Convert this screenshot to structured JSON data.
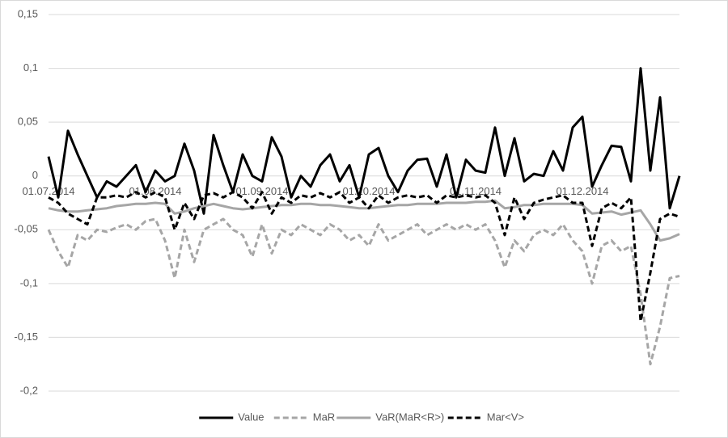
{
  "chart_data": {
    "type": "line",
    "categories": [
      "01.07.2014",
      null,
      null,
      null,
      null,
      null,
      null,
      null,
      null,
      null,
      null,
      "01.08.2014",
      null,
      null,
      null,
      null,
      null,
      null,
      null,
      null,
      null,
      null,
      "01.09.2014",
      null,
      null,
      null,
      null,
      null,
      null,
      null,
      null,
      null,
      null,
      "01.10.2014",
      null,
      null,
      null,
      null,
      null,
      null,
      null,
      null,
      null,
      null,
      "01.11.2014",
      null,
      null,
      null,
      null,
      null,
      null,
      null,
      null,
      null,
      null,
      "01.12.2014",
      null,
      null,
      null,
      null,
      null,
      null,
      null,
      null,
      null,
      null
    ],
    "series": [
      {
        "name": "Value",
        "color": "#000000",
        "dashed": false,
        "values": [
          0.018,
          -0.02,
          0.042,
          0.02,
          0.0,
          -0.02,
          -0.005,
          -0.01,
          0.0,
          0.01,
          -0.015,
          0.005,
          -0.005,
          0.0,
          0.03,
          0.005,
          -0.035,
          0.038,
          0.01,
          -0.015,
          0.02,
          0.0,
          -0.005,
          0.036,
          0.018,
          -0.02,
          0.0,
          -0.01,
          0.01,
          0.02,
          -0.005,
          0.01,
          -0.02,
          0.02,
          0.026,
          0.0,
          -0.015,
          0.005,
          0.015,
          0.016,
          -0.01,
          0.02,
          -0.02,
          0.015,
          0.005,
          0.003,
          0.045,
          0.0,
          0.035,
          -0.005,
          0.002,
          0.0,
          0.023,
          0.005,
          0.045,
          0.055,
          -0.01,
          0.01,
          0.028,
          0.027,
          -0.005,
          0.1,
          0.005,
          0.073,
          -0.03,
          0.0
        ]
      },
      {
        "name": "MaR",
        "color": "#a6a6a6",
        "dashed": true,
        "values": [
          -0.05,
          -0.07,
          -0.085,
          -0.055,
          -0.06,
          -0.05,
          -0.052,
          -0.048,
          -0.045,
          -0.05,
          -0.042,
          -0.04,
          -0.06,
          -0.095,
          -0.05,
          -0.08,
          -0.05,
          -0.045,
          -0.04,
          -0.05,
          -0.055,
          -0.075,
          -0.045,
          -0.072,
          -0.05,
          -0.055,
          -0.045,
          -0.05,
          -0.055,
          -0.045,
          -0.05,
          -0.06,
          -0.055,
          -0.065,
          -0.045,
          -0.06,
          -0.055,
          -0.05,
          -0.045,
          -0.055,
          -0.05,
          -0.045,
          -0.05,
          -0.045,
          -0.05,
          -0.045,
          -0.06,
          -0.085,
          -0.06,
          -0.07,
          -0.055,
          -0.05,
          -0.055,
          -0.045,
          -0.06,
          -0.07,
          -0.1,
          -0.065,
          -0.06,
          -0.07,
          -0.065,
          -0.11,
          -0.175,
          -0.14,
          -0.095,
          -0.093
        ]
      },
      {
        "name": "VaR(MaR<R>)",
        "color": "#a6a6a6",
        "dashed": false,
        "values": [
          -0.03,
          -0.032,
          -0.033,
          -0.033,
          -0.032,
          -0.031,
          -0.03,
          -0.028,
          -0.027,
          -0.026,
          -0.026,
          -0.025,
          -0.026,
          -0.035,
          -0.033,
          -0.03,
          -0.028,
          -0.026,
          -0.028,
          -0.03,
          -0.031,
          -0.03,
          -0.029,
          -0.028,
          -0.027,
          -0.027,
          -0.026,
          -0.026,
          -0.027,
          -0.027,
          -0.028,
          -0.029,
          -0.03,
          -0.03,
          -0.029,
          -0.028,
          -0.027,
          -0.027,
          -0.026,
          -0.026,
          -0.026,
          -0.025,
          -0.025,
          -0.025,
          -0.024,
          -0.024,
          -0.023,
          -0.03,
          -0.029,
          -0.027,
          -0.027,
          -0.026,
          -0.026,
          -0.026,
          -0.026,
          -0.027,
          -0.035,
          -0.034,
          -0.033,
          -0.036,
          -0.034,
          -0.032,
          -0.045,
          -0.06,
          -0.058,
          -0.054
        ]
      },
      {
        "name": "Mar<V>",
        "color": "#000000",
        "dashed": true,
        "values": [
          -0.02,
          -0.025,
          -0.035,
          -0.04,
          -0.045,
          -0.02,
          -0.02,
          -0.018,
          -0.02,
          -0.015,
          -0.02,
          -0.015,
          -0.02,
          -0.05,
          -0.025,
          -0.04,
          -0.018,
          -0.016,
          -0.02,
          -0.015,
          -0.02,
          -0.03,
          -0.015,
          -0.035,
          -0.02,
          -0.025,
          -0.018,
          -0.02,
          -0.016,
          -0.02,
          -0.015,
          -0.025,
          -0.02,
          -0.03,
          -0.018,
          -0.025,
          -0.02,
          -0.018,
          -0.02,
          -0.018,
          -0.025,
          -0.018,
          -0.02,
          -0.018,
          -0.02,
          -0.018,
          -0.025,
          -0.055,
          -0.02,
          -0.04,
          -0.025,
          -0.022,
          -0.02,
          -0.018,
          -0.025,
          -0.025,
          -0.065,
          -0.03,
          -0.025,
          -0.03,
          -0.02,
          -0.135,
          -0.09,
          -0.04,
          -0.035,
          -0.038
        ]
      }
    ],
    "ylim": [
      -0.2,
      0.15
    ],
    "yticks": [
      {
        "value": -0.2,
        "label": "-0,2"
      },
      {
        "value": -0.15,
        "label": "-0,15"
      },
      {
        "value": -0.1,
        "label": "-0,1"
      },
      {
        "value": -0.05,
        "label": "-0,05"
      },
      0,
      {
        "value": 0.05,
        "label": "0,05"
      },
      {
        "value": 0.1,
        "label": "0,1"
      },
      {
        "value": 0.15,
        "label": "0,15"
      }
    ],
    "grid": true,
    "legend": "bottom"
  }
}
